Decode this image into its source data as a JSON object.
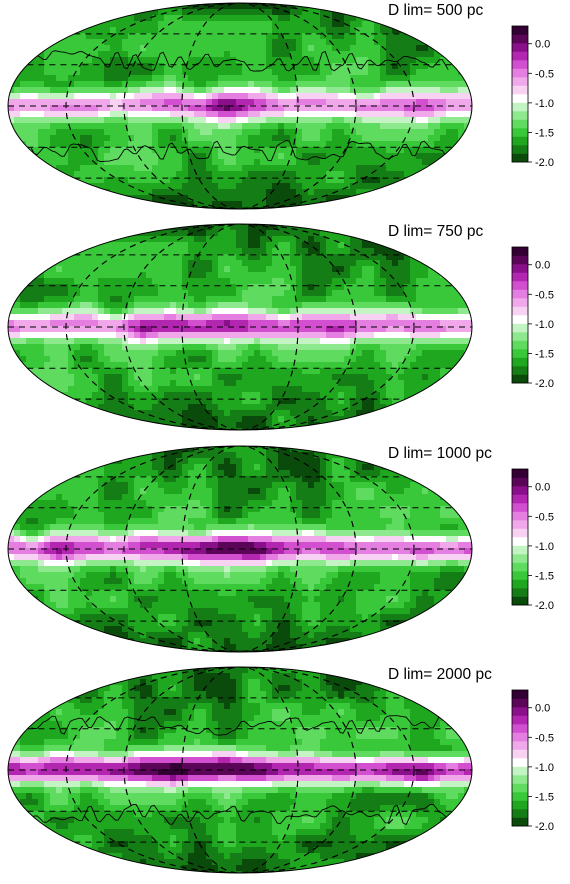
{
  "chart_data": [
    {
      "type": "heatmap",
      "projection": "Mollweide (Aitoff-like) all-sky map",
      "title": "D lim= 500 pc",
      "colorbar": {
        "min": -2.0,
        "max": 0.3,
        "ticks": [
          "0.0",
          "-0.5",
          "-1.0",
          "-1.5",
          "-2.0"
        ]
      },
      "dense_regions_contours": true,
      "features": {
        "galactic_plane_value": -0.5,
        "high_latitude_value": -1.6,
        "poles_value": -1.9
      }
    },
    {
      "type": "heatmap",
      "projection": "Mollweide (Aitoff-like) all-sky map",
      "title": "D lim= 750 pc",
      "colorbar": {
        "min": -2.0,
        "max": 0.3,
        "ticks": [
          "0.0",
          "-0.5",
          "-1.0",
          "-1.5",
          "-2.0"
        ]
      },
      "dense_regions_contours": false,
      "features": {
        "galactic_plane_value": -0.4,
        "high_latitude_value": -1.6,
        "poles_value": -1.9
      }
    },
    {
      "type": "heatmap",
      "projection": "Mollweide (Aitoff-like) all-sky map",
      "title": "D lim= 1000 pc",
      "colorbar": {
        "min": -2.0,
        "max": 0.3,
        "ticks": [
          "0.0",
          "-0.5",
          "-1.0",
          "-1.5",
          "-2.0"
        ]
      },
      "dense_regions_contours": false,
      "features": {
        "galactic_plane_value": -0.3,
        "high_latitude_value": -1.6,
        "poles_value": -1.9
      }
    },
    {
      "type": "heatmap",
      "projection": "Mollweide (Aitoff-like) all-sky map",
      "title": "D lim= 2000 pc",
      "colorbar": {
        "min": -2.0,
        "max": 0.3,
        "ticks": [
          "0.0",
          "-0.5",
          "-1.0",
          "-1.5",
          "-2.0"
        ]
      },
      "dense_regions_contours": true,
      "features": {
        "galactic_plane_value": -0.1,
        "high_latitude_value": -1.6,
        "poles_value": -1.9
      }
    }
  ],
  "colors": {
    "scale": [
      "#0a4a0a",
      "#157d15",
      "#1fa81f",
      "#39c839",
      "#5fdc5f",
      "#8ee98e",
      "#c4f3c4",
      "#ffffff",
      "#f7d2f3",
      "#f0a8ea",
      "#e47ee0",
      "#d24fcf",
      "#b226b0",
      "#8a0f8a",
      "#5a0558",
      "#330033"
    ],
    "grid": "#000000",
    "outline": "#000000"
  }
}
